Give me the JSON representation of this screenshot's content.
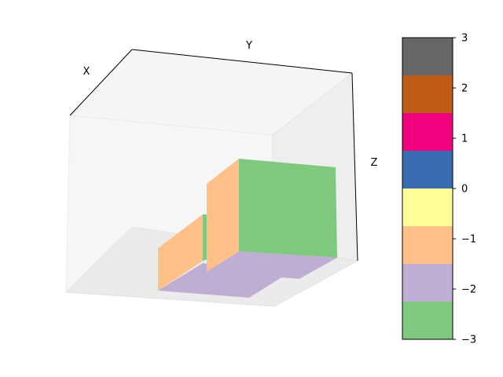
{
  "chart_data": {
    "type": "3d-voxels",
    "title": "",
    "xlabel": "X",
    "ylabel": "Y",
    "zlabel": "Z",
    "grid": false,
    "voxels": [
      {
        "block": "small",
        "top_value": -2,
        "side_value": -1,
        "front_value": -3
      },
      {
        "block": "large",
        "top_value": -2,
        "side_value": -1,
        "front_value": -3
      }
    ],
    "colorbar": {
      "min": -3,
      "max": 3,
      "ticks": [
        -3,
        -2,
        -1,
        0,
        1,
        2,
        3
      ],
      "tick_labels": [
        "−3",
        "−2",
        "−1",
        "0",
        "1",
        "2",
        "3"
      ],
      "colors": [
        "#7fc97f",
        "#beaed4",
        "#fdc086",
        "#ffff99",
        "#386cb0",
        "#f0027f",
        "#bf5b17",
        "#666666"
      ],
      "placement": "right"
    }
  }
}
